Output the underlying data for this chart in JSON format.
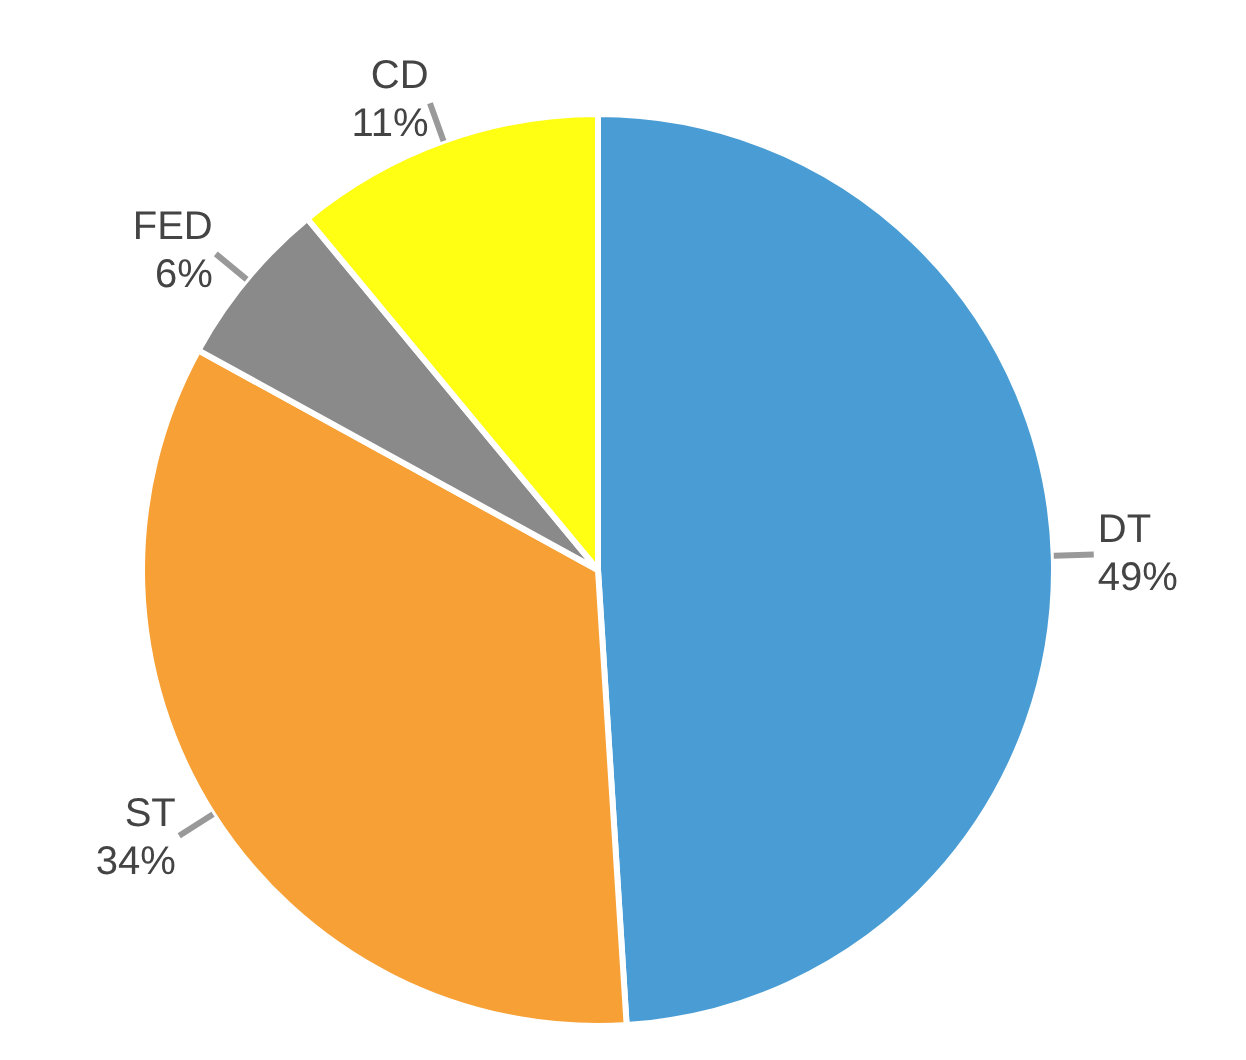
{
  "chart_data": {
    "type": "pie",
    "categories": [
      "DT",
      "ST",
      "FED",
      "CD"
    ],
    "values": [
      49,
      34,
      6,
      11
    ],
    "value_labels": [
      "49%",
      "34%",
      "6%",
      "11%"
    ],
    "colors": [
      "#4a9dd4",
      "#f7a035",
      "#8a8a8a",
      "#ffff14"
    ]
  }
}
